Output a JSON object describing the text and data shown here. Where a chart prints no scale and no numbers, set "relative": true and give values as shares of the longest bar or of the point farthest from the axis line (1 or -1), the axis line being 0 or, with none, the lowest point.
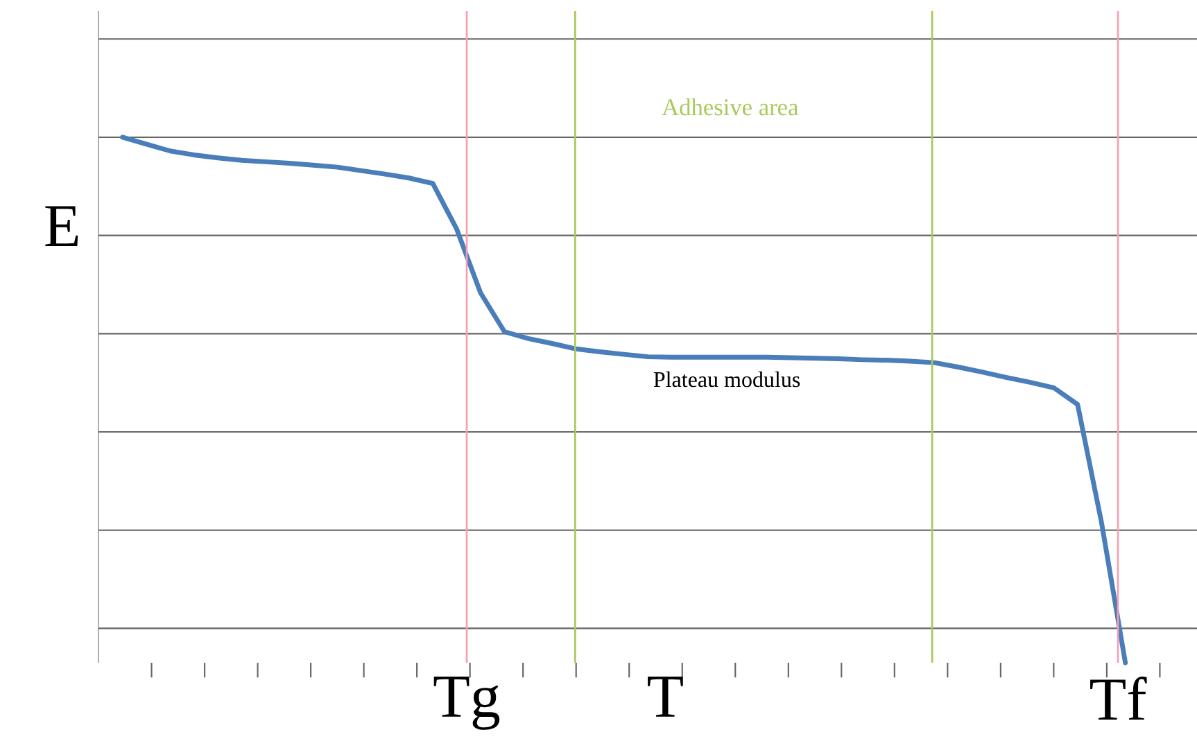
{
  "chart_data": {
    "type": "line",
    "relative": true,
    "xlabel": "T",
    "ylabel": "E",
    "categories": [
      null,
      null,
      null,
      null,
      null,
      null,
      null,
      null,
      null,
      null,
      null,
      null,
      null,
      null,
      null,
      null,
      null,
      null,
      null,
      null,
      null,
      null,
      null,
      null,
      null,
      null,
      null,
      null,
      null,
      null,
      null,
      null,
      null,
      null,
      null,
      null,
      null,
      null,
      null,
      null,
      null,
      null,
      null
    ],
    "series": [
      {
        "color": "#4a7ebb",
        "values": [
          1.0,
          0.986,
          0.972,
          0.964,
          0.958,
          0.953,
          0.95,
          0.947,
          0.943,
          0.939,
          0.932,
          0.925,
          0.917,
          0.906,
          0.813,
          0.683,
          0.604,
          0.59,
          0.58,
          0.569,
          0.563,
          0.558,
          0.553,
          0.552,
          0.552,
          0.552,
          0.552,
          0.552,
          0.551,
          0.55,
          0.549,
          0.547,
          0.546,
          0.544,
          0.541,
          0.532,
          0.522,
          0.511,
          0.501,
          0.49,
          0.456,
          0.216,
          -0.07
        ]
      }
    ],
    "annotations": [
      "Adhesive area",
      "Plateau modulus",
      "Tg",
      "Tf"
    ],
    "grid": "y",
    "line_style": "solid",
    "marker": "none"
  }
}
